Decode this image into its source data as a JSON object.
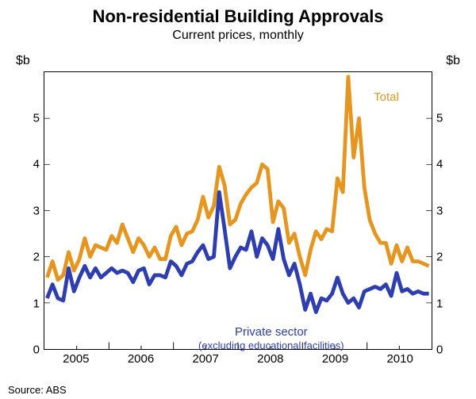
{
  "title": "Non-residential Building Approvals",
  "title_fontsize": 22,
  "subtitle": "Current prices, monthly",
  "subtitle_fontsize": 16,
  "y_unit": "$b",
  "y_unit_fontsize": 16,
  "source": "Source: ABS",
  "ylim": [
    0,
    6
  ],
  "yticks": [
    0,
    1,
    2,
    3,
    4,
    5
  ],
  "ytick_fontsize": 15,
  "x_domain_months": 72,
  "x_years": [
    2005,
    2006,
    2007,
    2008,
    2009,
    2010
  ],
  "x_major_month_indices": [
    12,
    24,
    36,
    48,
    60,
    72
  ],
  "x_label_month_indices": [
    6,
    18,
    30,
    42,
    54,
    66
  ],
  "xtick_fontsize": 15,
  "plot_bg": "#ffffff",
  "border_color": "#000000",
  "series": [
    {
      "name": "Total",
      "label": "Total",
      "color": "#e6951e",
      "line_width": 1.6,
      "label_pos_month": 61,
      "label_pos_y": 5.6,
      "values": [
        1.55,
        1.9,
        1.5,
        1.6,
        2.1,
        1.7,
        1.95,
        2.4,
        2.0,
        2.25,
        2.2,
        2.15,
        2.45,
        2.3,
        2.7,
        2.4,
        2.1,
        2.4,
        2.25,
        2.0,
        2.2,
        1.95,
        1.95,
        2.45,
        2.65,
        2.25,
        2.5,
        2.55,
        2.8,
        3.3,
        2.85,
        3.1,
        3.95,
        3.55,
        2.7,
        2.8,
        3.15,
        3.35,
        3.5,
        3.6,
        4.0,
        3.9,
        2.75,
        3.2,
        3.05,
        2.3,
        2.5,
        2.0,
        1.6,
        2.15,
        2.55,
        2.38,
        2.6,
        2.55,
        3.7,
        3.4,
        5.9,
        4.15,
        5.0,
        3.5,
        2.8,
        2.5,
        2.3,
        2.3,
        1.85,
        2.25,
        1.9,
        2.2,
        1.9,
        1.9,
        1.85,
        1.8
      ]
    },
    {
      "name": "Private sector",
      "label_line1": "Private sector",
      "label_line2": "(excluding educational facilities)",
      "color": "#2e3db0",
      "line_width": 1.6,
      "label_pos_month": 42,
      "label_pos_y": 0.55,
      "values": [
        1.1,
        1.4,
        1.1,
        1.05,
        1.75,
        1.25,
        1.55,
        1.8,
        1.55,
        1.75,
        1.55,
        1.65,
        1.75,
        1.65,
        1.7,
        1.65,
        1.45,
        1.7,
        1.75,
        1.4,
        1.6,
        1.6,
        1.55,
        1.9,
        1.8,
        1.6,
        1.85,
        1.9,
        2.1,
        2.25,
        1.95,
        2.0,
        3.4,
        2.6,
        1.75,
        2.0,
        2.2,
        2.15,
        2.55,
        2.0,
        2.4,
        2.25,
        1.95,
        2.6,
        1.95,
        1.6,
        1.85,
        1.4,
        0.85,
        1.2,
        0.8,
        1.1,
        1.05,
        1.2,
        1.55,
        1.2,
        1.0,
        1.1,
        0.9,
        1.25,
        1.3,
        1.35,
        1.3,
        1.4,
        1.15,
        1.65,
        1.25,
        1.3,
        1.2,
        1.25,
        1.2,
        1.2
      ]
    }
  ]
}
